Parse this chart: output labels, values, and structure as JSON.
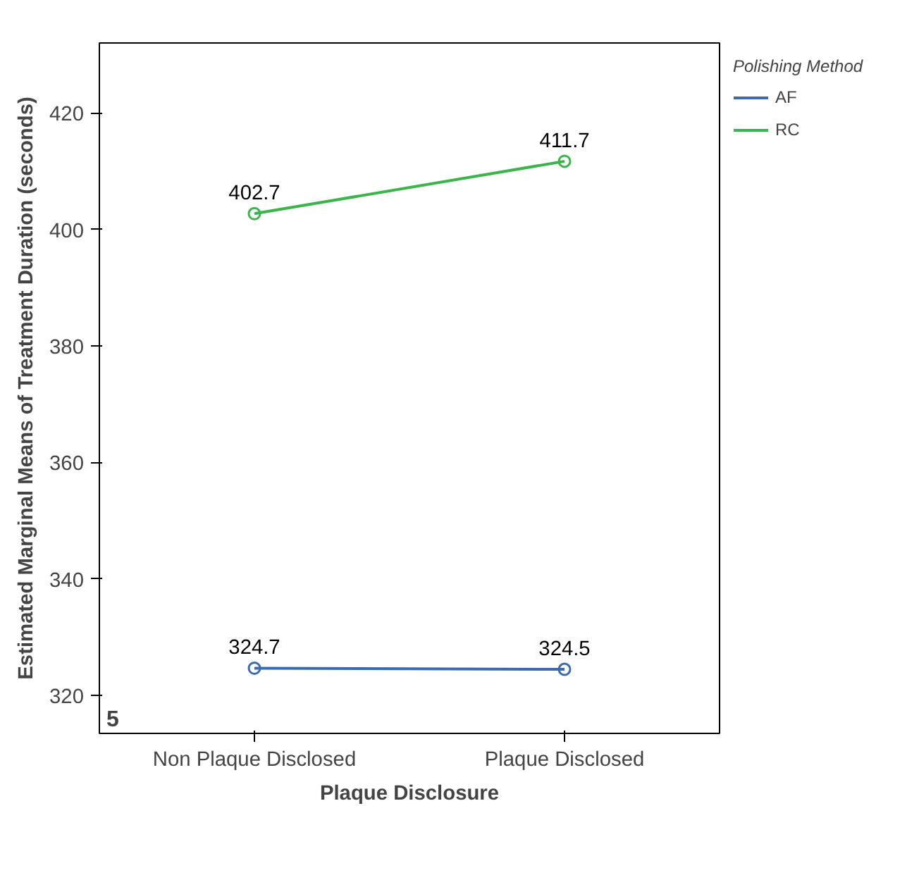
{
  "chart_data": {
    "type": "line",
    "xlabel": "Plaque Disclosure",
    "ylabel": "Estimated Marginal Means of Treatment Duration (seconds)",
    "legend_title": "Polishing Method",
    "categories": [
      "Non Plaque Disclosed",
      "Plaque Disclosed"
    ],
    "series": [
      {
        "name": "AF",
        "color": "#3a6bb0",
        "values": [
          324.7,
          324.5
        ]
      },
      {
        "name": "RC",
        "color": "#3bb54a",
        "values": [
          402.7,
          411.7
        ]
      }
    ],
    "ylim": [
      313.5,
      432
    ],
    "yticks": [
      320,
      340,
      360,
      380,
      400,
      420
    ],
    "grid": false,
    "legend": "right",
    "marker": "circle",
    "data_labels": true,
    "annotations": [
      "5"
    ]
  }
}
